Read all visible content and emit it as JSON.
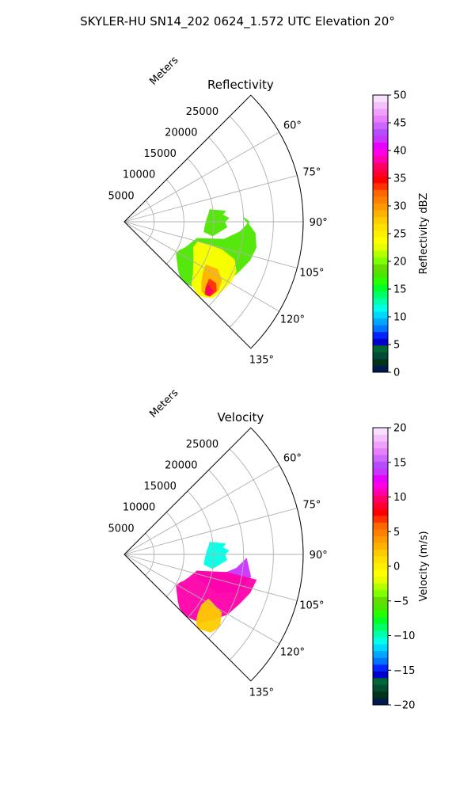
{
  "figure": {
    "title": "SKYLER-HU  SN14_202  0624_1.572 UTC Elevation 20°"
  },
  "chart_data": [
    {
      "type": "polar-sector",
      "title": "Reflectivity",
      "range_label": "Meters",
      "azimuth_range_deg": [
        45,
        135
      ],
      "radial_range_m": [
        0,
        30000
      ],
      "azimuth_ticks_deg": [
        60,
        75,
        90,
        105,
        120,
        135
      ],
      "azimuth_tick_labels": [
        "60°",
        "75°",
        "90°",
        "105°",
        "120°",
        "135°"
      ],
      "radial_ticks_m": [
        5000,
        10000,
        15000,
        20000,
        25000
      ],
      "radial_tick_labels": [
        "5000",
        "10000",
        "15000",
        "20000",
        "25000"
      ],
      "grid": true,
      "colorbar": {
        "label": "Reflectivity dBZ",
        "range": [
          0,
          50
        ],
        "ticks": [
          0,
          5,
          10,
          15,
          20,
          25,
          30,
          35,
          40,
          45,
          50
        ],
        "tick_labels": [
          "0",
          "5",
          "10",
          "15",
          "20",
          "25",
          "30",
          "35",
          "40",
          "45",
          "50"
        ],
        "colors": [
          "#001a4d",
          "#00331a",
          "#004d33",
          "#006633",
          "#0000cc",
          "#0026ff",
          "#0073ff",
          "#00a6ff",
          "#00d9ff",
          "#00ffe6",
          "#00ffaa",
          "#00ff66",
          "#00ff26",
          "#26ff00",
          "#4de600",
          "#66dd00",
          "#80ff00",
          "#b3ff00",
          "#e6ff00",
          "#ffff00",
          "#fff000",
          "#ffe000",
          "#ffcc00",
          "#ffb300",
          "#ff9900",
          "#ff8000",
          "#ff6600",
          "#ff3300",
          "#ff0000",
          "#ff0033",
          "#ff0066",
          "#ff00aa",
          "#ff00e6",
          "#e600ff",
          "#cc33ff",
          "#b34dff",
          "#cc66ff",
          "#e680ff",
          "#f0a0ff",
          "#f5c2ff",
          "#fae0ff"
        ]
      },
      "echo_regions": [
        {
          "value": 18,
          "points": [
            [
              82,
              14500
            ],
            [
              84,
              17000
            ],
            [
              86,
              16500
            ],
            [
              88,
              17500
            ],
            [
              90,
              16800
            ],
            [
              93,
              17200
            ],
            [
              96,
              16000
            ],
            [
              99,
              15000
            ],
            [
              97,
              13500
            ],
            [
              93,
              13600
            ],
            [
              89,
              13800
            ],
            [
              85,
              14200
            ]
          ]
        },
        {
          "value": 18,
          "points": [
            [
              88,
              20000
            ],
            [
              90,
              21000
            ],
            [
              95,
              19500
            ],
            [
              100,
              17000
            ],
            [
              103,
              12500
            ],
            [
              110,
              11500
            ],
            [
              114,
              11000
            ],
            [
              117,
              10500
            ],
            [
              121,
              10200
            ],
            [
              126,
              11000
            ],
            [
              131,
              12000
            ],
            [
              134,
              13000
            ],
            [
              135,
              14500
            ],
            [
              132,
              17000
            ],
            [
              126,
              18500
            ],
            [
              120,
              20000
            ],
            [
              113,
              21000
            ],
            [
              107,
              22000
            ],
            [
              101,
              22500
            ],
            [
              95,
              22000
            ]
          ]
        },
        {
          "value": 24,
          "points": [
            [
              105,
              12800
            ],
            [
              110,
              12400
            ],
            [
              116,
              13000
            ],
            [
              121,
              13600
            ],
            [
              127,
              14500
            ],
            [
              133,
              15500
            ],
            [
              135,
              17500
            ],
            [
              131,
              19500
            ],
            [
              126,
              20000
            ],
            [
              120,
              20500
            ],
            [
              114,
              20500
            ],
            [
              109,
              19500
            ],
            [
              106,
              17000
            ]
          ]
        },
        {
          "value": 29,
          "points": [
            [
              118,
              15500
            ],
            [
              123,
              15800
            ],
            [
              128,
              16500
            ],
            [
              132,
              17500
            ],
            [
              131,
              19000
            ],
            [
              126,
              19500
            ],
            [
              121,
              19000
            ],
            [
              117,
              17500
            ]
          ]
        },
        {
          "value": 34,
          "points": [
            [
              124,
              17200
            ],
            [
              129,
              17600
            ],
            [
              132,
              18200
            ],
            [
              131,
              19000
            ],
            [
              127,
              19300
            ],
            [
              124,
              18500
            ]
          ]
        },
        {
          "value": 37,
          "points": [
            [
              127,
              17500
            ],
            [
              130,
              17900
            ],
            [
              131.5,
              18500
            ],
            [
              130.5,
              18900
            ],
            [
              128,
              18900
            ]
          ]
        }
      ]
    },
    {
      "type": "polar-sector",
      "title": "Velocity",
      "range_label": "Meters",
      "azimuth_range_deg": [
        45,
        135
      ],
      "radial_range_m": [
        0,
        30000
      ],
      "azimuth_ticks_deg": [
        60,
        75,
        90,
        105,
        120,
        135
      ],
      "azimuth_tick_labels": [
        "60°",
        "75°",
        "90°",
        "105°",
        "120°",
        "135°"
      ],
      "radial_ticks_m": [
        5000,
        10000,
        15000,
        20000,
        25000
      ],
      "radial_tick_labels": [
        "5000",
        "10000",
        "15000",
        "20000",
        "25000"
      ],
      "grid": true,
      "colorbar": {
        "label": "Velocity (m/s)",
        "range": [
          -20,
          20
        ],
        "ticks": [
          -20,
          -15,
          -10,
          -5,
          0,
          5,
          10,
          15,
          20
        ],
        "tick_labels": [
          "−20",
          "−15",
          "−10",
          "−5",
          "0",
          "5",
          "10",
          "15",
          "20"
        ],
        "colors": [
          "#001a4d",
          "#00331a",
          "#004d33",
          "#006633",
          "#0000cc",
          "#0026ff",
          "#0073ff",
          "#00a6ff",
          "#00d9ff",
          "#00ffe6",
          "#00ffaa",
          "#00ff66",
          "#00ff26",
          "#26ff00",
          "#4de600",
          "#66dd00",
          "#80ff00",
          "#b3ff00",
          "#e6ff00",
          "#ffff00",
          "#fff000",
          "#ffe000",
          "#ffcc00",
          "#ffb300",
          "#ff9900",
          "#ff8000",
          "#ff6600",
          "#ff3300",
          "#ff0000",
          "#ff0033",
          "#ff0066",
          "#ff00aa",
          "#ff00e6",
          "#e600ff",
          "#cc33ff",
          "#b34dff",
          "#cc66ff",
          "#e680ff",
          "#f0a0ff",
          "#f5c2ff",
          "#fae0ff"
        ]
      },
      "echo_regions": [
        {
          "value": -11,
          "points": [
            [
              82,
              14500
            ],
            [
              84,
              17000
            ],
            [
              86,
              16500
            ],
            [
              88,
              17500
            ],
            [
              90,
              16800
            ],
            [
              93,
              17200
            ],
            [
              96,
              16000
            ],
            [
              99,
              15000
            ],
            [
              97,
              13500
            ],
            [
              93,
              13600
            ],
            [
              89,
              13800
            ],
            [
              85,
              14200
            ]
          ]
        },
        {
          "value": 14,
          "points": [
            [
              92,
              20500
            ],
            [
              97,
              19000
            ],
            [
              101,
              17000
            ],
            [
              103,
              12500
            ],
            [
              108,
              13000
            ],
            [
              112,
              17000
            ],
            [
              108,
              20000
            ],
            [
              100,
              21500
            ]
          ]
        },
        {
          "value": 11,
          "points": [
            [
              100,
              17500
            ],
            [
              103,
              12500
            ],
            [
              110,
              11500
            ],
            [
              114,
              11000
            ],
            [
              117,
              10500
            ],
            [
              121,
              10200
            ],
            [
              126,
              11000
            ],
            [
              131,
              12000
            ],
            [
              134,
              13000
            ],
            [
              135,
              14500
            ],
            [
              132,
              17000
            ],
            [
              126,
              18500
            ],
            [
              120,
              20000
            ],
            [
              113,
              21000
            ],
            [
              107,
              22000
            ],
            [
              101,
              22500
            ]
          ]
        },
        {
          "value": 2,
          "points": [
            [
              118,
              16000
            ],
            [
              123,
              15500
            ],
            [
              128,
              15800
            ],
            [
              133,
              16500
            ],
            [
              135,
              17500
            ],
            [
              132,
              19500
            ],
            [
              127,
              20000
            ],
            [
              121,
              19000
            ]
          ]
        }
      ]
    }
  ]
}
